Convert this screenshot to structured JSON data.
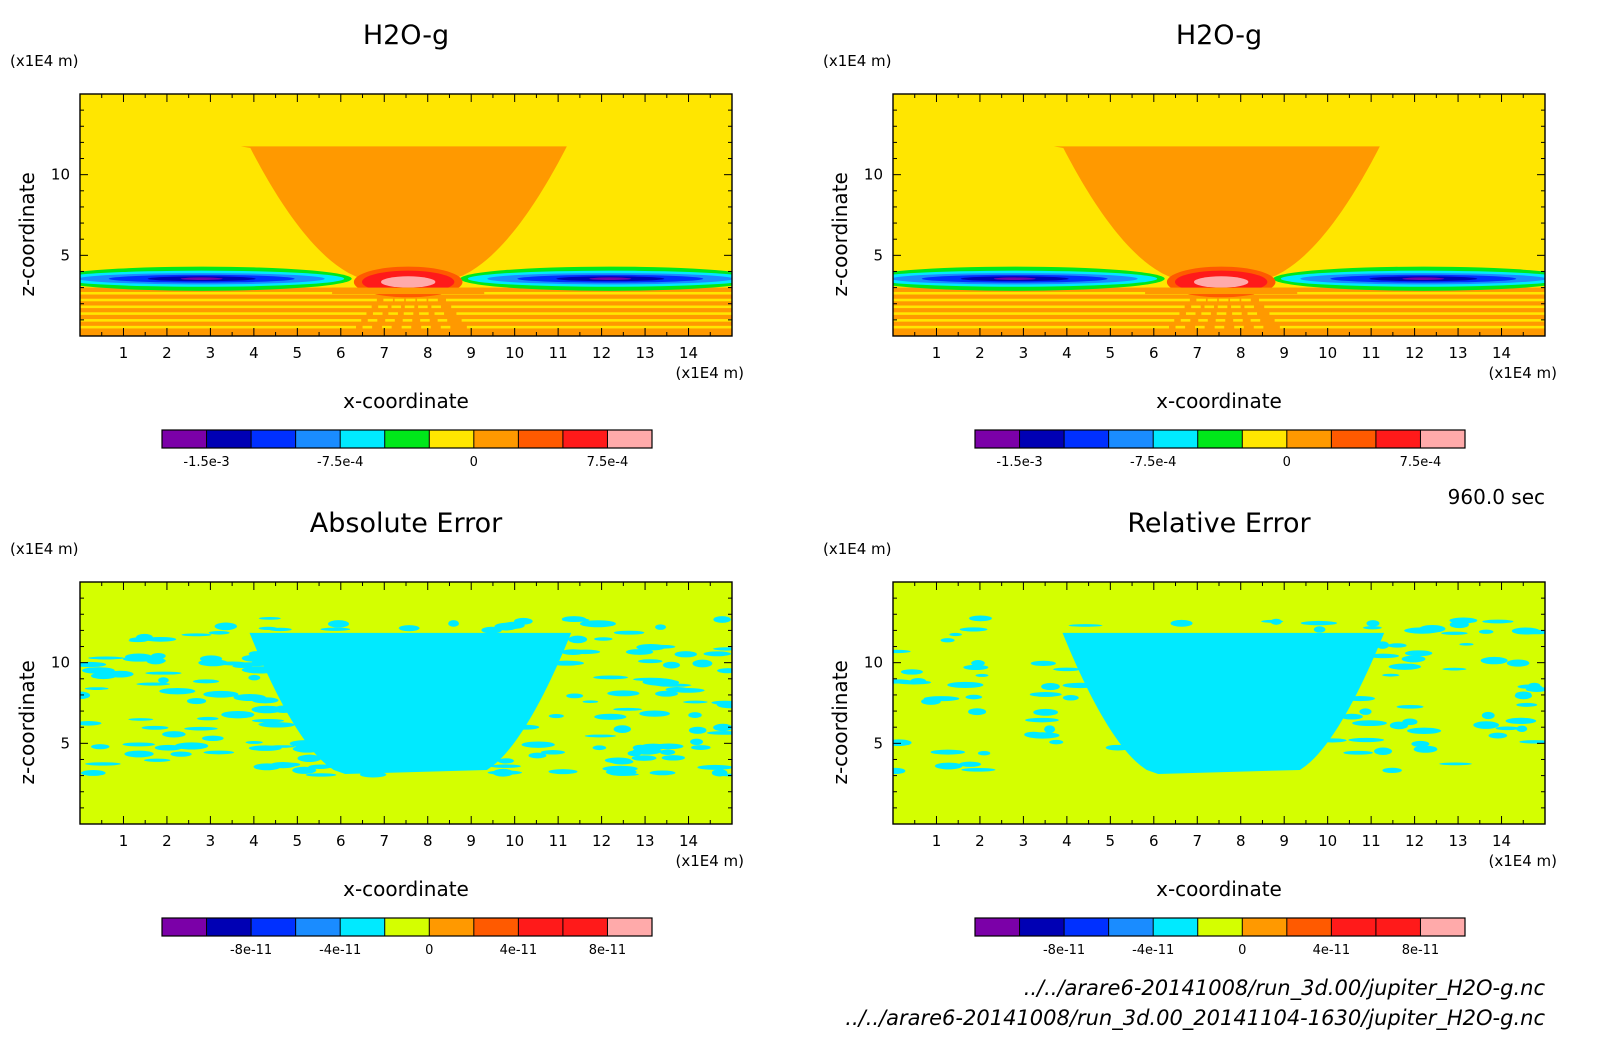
{
  "colors": {
    "purple": "#7b00a8",
    "navy": "#0000b4",
    "blue": "#0030ff",
    "azure": "#1a8cff",
    "cyan": "#00eaff",
    "green": "#00e81a",
    "yellow": "#ffe600",
    "orange": "#ff9900",
    "red_orange": "#ff5a00",
    "red": "#ff1a1a",
    "pink": "#ffaaaa",
    "lime": "#d4ff00"
  },
  "time_label": "960.0 sec",
  "file_paths": [
    "../../arare6-20141008/run_3d.00/jupiter_H2O-g.nc",
    "../../arare6-20141008/run_3d.00_20141104-1630/jupiter_H2O-g.nc"
  ],
  "chart_data": [
    {
      "type": "heatmap",
      "title": "H2O-g",
      "xlabel": "x-coordinate",
      "ylabel": "z-coordinate",
      "x_unit": "(x1E4 m)",
      "y_unit": "(x1E4 m)",
      "x_ticks": [
        "1",
        "2",
        "3",
        "4",
        "5",
        "6",
        "7",
        "8",
        "9",
        "10",
        "11",
        "12",
        "13",
        "14"
      ],
      "y_ticks": [
        "5",
        "10"
      ],
      "xlim": [
        0,
        15
      ],
      "ylim": [
        0,
        15
      ],
      "colorbar": {
        "levels": [
          -0.00175,
          -0.0015,
          -0.00125,
          -0.001,
          -0.00075,
          -0.0005,
          -0.00025,
          0,
          0.00025,
          0.0005,
          0.00075,
          0.001
        ],
        "colors": [
          "purple",
          "navy",
          "blue",
          "azure",
          "cyan",
          "green",
          "yellow",
          "orange",
          "red_orange",
          "red",
          "pink"
        ],
        "tick_values": [
          -0.0015,
          -0.00075,
          0,
          0.00075
        ],
        "tick_labels": [
          "-1.5e-3",
          "-7.5e-4",
          "0",
          "7.5e-4"
        ]
      },
      "field": "h2o"
    },
    {
      "type": "heatmap",
      "title": "H2O-g",
      "xlabel": "x-coordinate",
      "ylabel": "z-coordinate",
      "x_unit": "(x1E4 m)",
      "y_unit": "(x1E4 m)",
      "x_ticks": [
        "1",
        "2",
        "3",
        "4",
        "5",
        "6",
        "7",
        "8",
        "9",
        "10",
        "11",
        "12",
        "13",
        "14"
      ],
      "y_ticks": [
        "5",
        "10"
      ],
      "xlim": [
        0,
        15
      ],
      "ylim": [
        0,
        15
      ],
      "colorbar": {
        "levels": [
          -0.00175,
          -0.0015,
          -0.00125,
          -0.001,
          -0.00075,
          -0.0005,
          -0.00025,
          0,
          0.00025,
          0.0005,
          0.00075,
          0.001
        ],
        "colors": [
          "purple",
          "navy",
          "blue",
          "azure",
          "cyan",
          "green",
          "yellow",
          "orange",
          "red_orange",
          "red",
          "pink"
        ],
        "tick_values": [
          -0.0015,
          -0.00075,
          0,
          0.00075
        ],
        "tick_labels": [
          "-1.5e-3",
          "-7.5e-4",
          "0",
          "7.5e-4"
        ]
      },
      "field": "h2o"
    },
    {
      "type": "heatmap",
      "title": "Absolute Error",
      "xlabel": "x-coordinate",
      "ylabel": "z-coordinate",
      "x_unit": "(x1E4 m)",
      "y_unit": "(x1E4 m)",
      "x_ticks": [
        "1",
        "2",
        "3",
        "4",
        "5",
        "6",
        "7",
        "8",
        "9",
        "10",
        "11",
        "12",
        "13",
        "14"
      ],
      "y_ticks": [
        "5",
        "10"
      ],
      "xlim": [
        0,
        15
      ],
      "ylim": [
        0,
        15
      ],
      "colorbar": {
        "levels": [
          -1.2e-10,
          -1e-10,
          -8e-11,
          -6e-11,
          -4e-11,
          -2e-11,
          0,
          2e-11,
          4e-11,
          6e-11,
          8e-11,
          1e-10
        ],
        "colors": [
          "purple",
          "navy",
          "blue",
          "azure",
          "cyan",
          "lime",
          "orange",
          "red_orange",
          "red",
          "red",
          "pink"
        ],
        "tick_values": [
          -8e-11,
          -4e-11,
          0,
          4e-11,
          8e-11
        ],
        "tick_labels": [
          "-8e-11",
          "-4e-11",
          "0",
          "4e-11",
          "8e-11"
        ]
      },
      "field": "abs_err"
    },
    {
      "type": "heatmap",
      "title": "Relative Error",
      "xlabel": "x-coordinate",
      "ylabel": "z-coordinate",
      "x_unit": "(x1E4 m)",
      "y_unit": "(x1E4 m)",
      "x_ticks": [
        "1",
        "2",
        "3",
        "4",
        "5",
        "6",
        "7",
        "8",
        "9",
        "10",
        "11",
        "12",
        "13",
        "14"
      ],
      "y_ticks": [
        "5",
        "10"
      ],
      "xlim": [
        0,
        15
      ],
      "ylim": [
        0,
        15
      ],
      "colorbar": {
        "levels": [
          -1.2e-10,
          -1e-10,
          -8e-11,
          -6e-11,
          -4e-11,
          -2e-11,
          0,
          2e-11,
          4e-11,
          6e-11,
          8e-11,
          1e-10
        ],
        "colors": [
          "purple",
          "navy",
          "blue",
          "azure",
          "cyan",
          "lime",
          "orange",
          "red_orange",
          "red",
          "red",
          "pink"
        ],
        "tick_values": [
          -8e-11,
          -4e-11,
          0,
          4e-11,
          8e-11
        ],
        "tick_labels": [
          "-8e-11",
          "-4e-11",
          "0",
          "4e-11",
          "8e-11"
        ]
      },
      "field": "rel_err"
    }
  ]
}
